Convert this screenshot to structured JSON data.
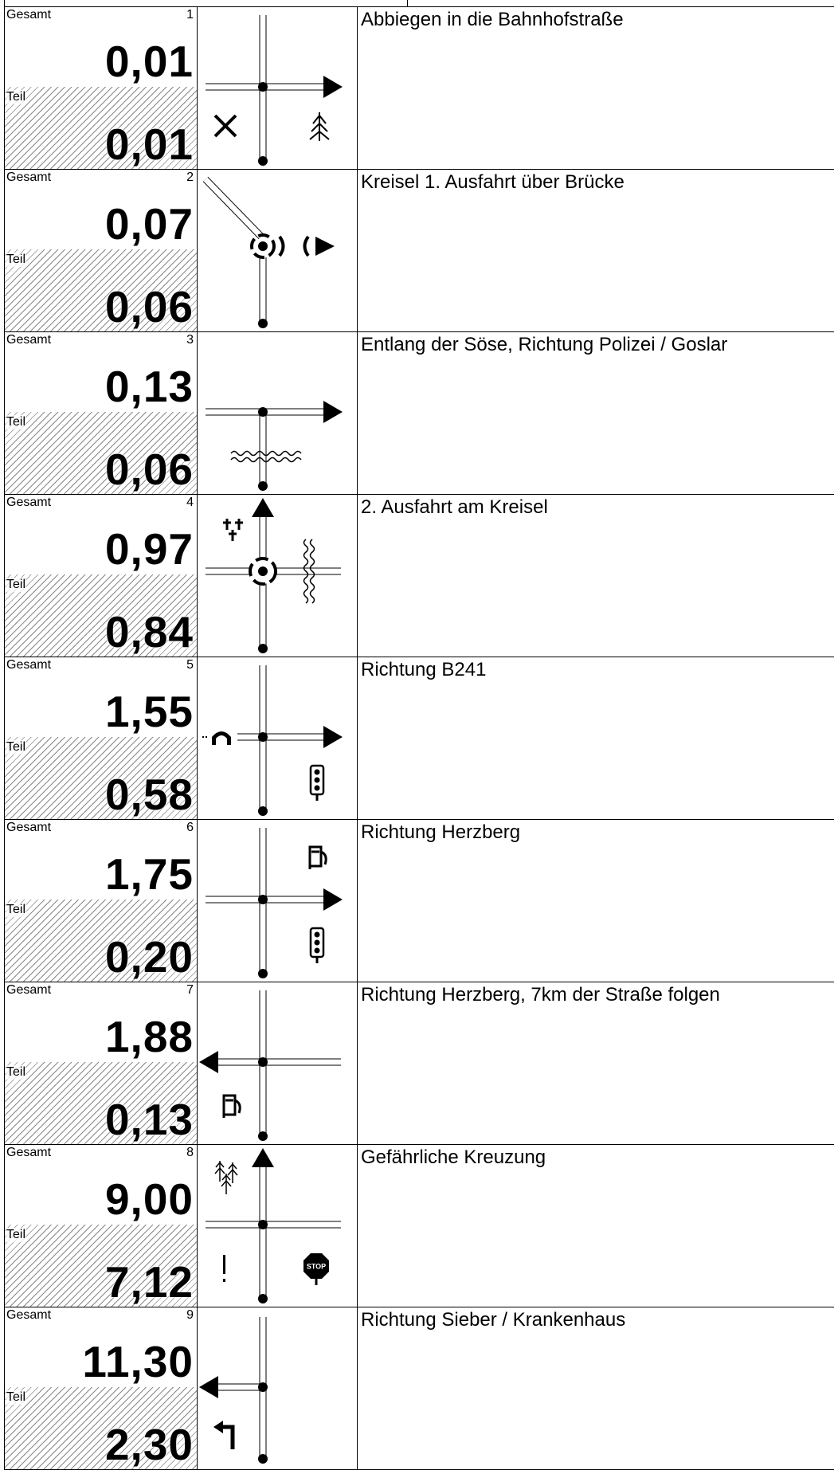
{
  "roadbook": {
    "label_total": "Gesamt",
    "label_part": "Teil",
    "rows": [
      {
        "number": "1",
        "total": "0,01",
        "part": "0,01",
        "instruction": "Abbiegen in die Bahnhofstraße",
        "icons": [
          "junction-right-arrow",
          "restaurant-icon",
          "tree-icon"
        ]
      },
      {
        "number": "2",
        "total": "0,07",
        "part": "0,06",
        "instruction": "Kreisel 1. Ausfahrt über Brücke",
        "icons": [
          "roundabout-icon",
          "bridge-icon"
        ]
      },
      {
        "number": "3",
        "total": "0,13",
        "part": "0,06",
        "instruction": "Entlang der Söse, Richtung Polizei / Goslar",
        "icons": [
          "junction-right-arrow",
          "river-icon"
        ]
      },
      {
        "number": "4",
        "total": "0,97",
        "part": "0,84",
        "instruction": "2. Ausfahrt am Kreisel",
        "icons": [
          "roundabout-icon",
          "cemetery-icon",
          "river-icon"
        ]
      },
      {
        "number": "5",
        "total": "1,55",
        "part": "0,58",
        "instruction": "Richtung B241",
        "icons": [
          "junction-right-arrow",
          "tunnel-icon",
          "traffic-light-icon"
        ]
      },
      {
        "number": "6",
        "total": "1,75",
        "part": "0,20",
        "instruction": "Richtung Herzberg",
        "icons": [
          "junction-right-arrow",
          "fuel-station-icon",
          "traffic-light-icon"
        ]
      },
      {
        "number": "7",
        "total": "1,88",
        "part": "0,13",
        "instruction": "Richtung Herzberg, 7km der Straße folgen",
        "icons": [
          "junction-left-arrow",
          "fuel-station-icon"
        ]
      },
      {
        "number": "8",
        "total": "9,00",
        "part": "7,12",
        "instruction": "Gefährliche Kreuzung",
        "icons": [
          "junction-straight-arrow",
          "forest-icon",
          "warning-icon",
          "stop-sign-icon"
        ]
      },
      {
        "number": "9",
        "total": "11,30",
        "part": "2,30",
        "instruction": "Richtung Sieber / Krankenhaus",
        "icons": [
          "junction-left-arrow",
          "turn-left-icon"
        ]
      }
    ]
  }
}
